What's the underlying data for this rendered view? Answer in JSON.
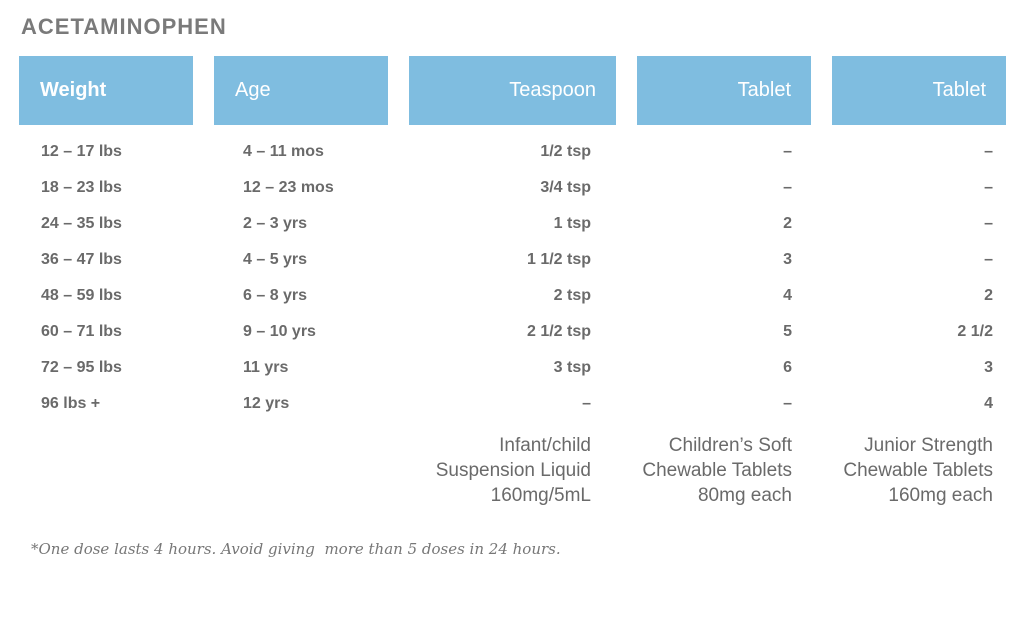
{
  "title": "ACETAMINOPHEN",
  "headers": [
    "Weight",
    "Age",
    "Teaspoon",
    "Tablet",
    "Tablet"
  ],
  "header_color": "#7fbde0",
  "rows": [
    [
      "12 – 17 lbs",
      "4 – 11 mos",
      "1/2 tsp",
      "–",
      "–"
    ],
    [
      "18 – 23 lbs",
      "12 – 23 mos",
      "3/4 tsp",
      "–",
      "–"
    ],
    [
      "24 – 35 lbs",
      "2 – 3 yrs",
      "1 tsp",
      "2",
      "–"
    ],
    [
      "36 – 47 lbs",
      "4 – 5 yrs",
      "1 1/2 tsp",
      "3",
      "–"
    ],
    [
      "48 – 59 lbs",
      "6 – 8 yrs",
      "2 tsp",
      "4",
      "2"
    ],
    [
      "60 – 71 lbs",
      "9 – 10 yrs",
      "2 1/2 tsp",
      "5",
      "2 1/2"
    ],
    [
      "72 – 95 lbs",
      "11 yrs",
      "3 tsp",
      "6",
      "3"
    ],
    [
      "96 lbs +",
      "12 yrs",
      "–",
      "–",
      "4"
    ]
  ],
  "footers": {
    "teaspoon": [
      "Infant/child",
      "Suspension Liquid",
      "160mg/5mL"
    ],
    "tablet_childrens": [
      "Children’s Soft",
      "Chewable Tablets",
      "80mg each"
    ],
    "tablet_junior": [
      "Junior Strength",
      "Chewable Tablets",
      "160mg each"
    ]
  },
  "note": "*One dose lasts 4 hours. Avoid giving  more than 5 doses in 24 hours."
}
